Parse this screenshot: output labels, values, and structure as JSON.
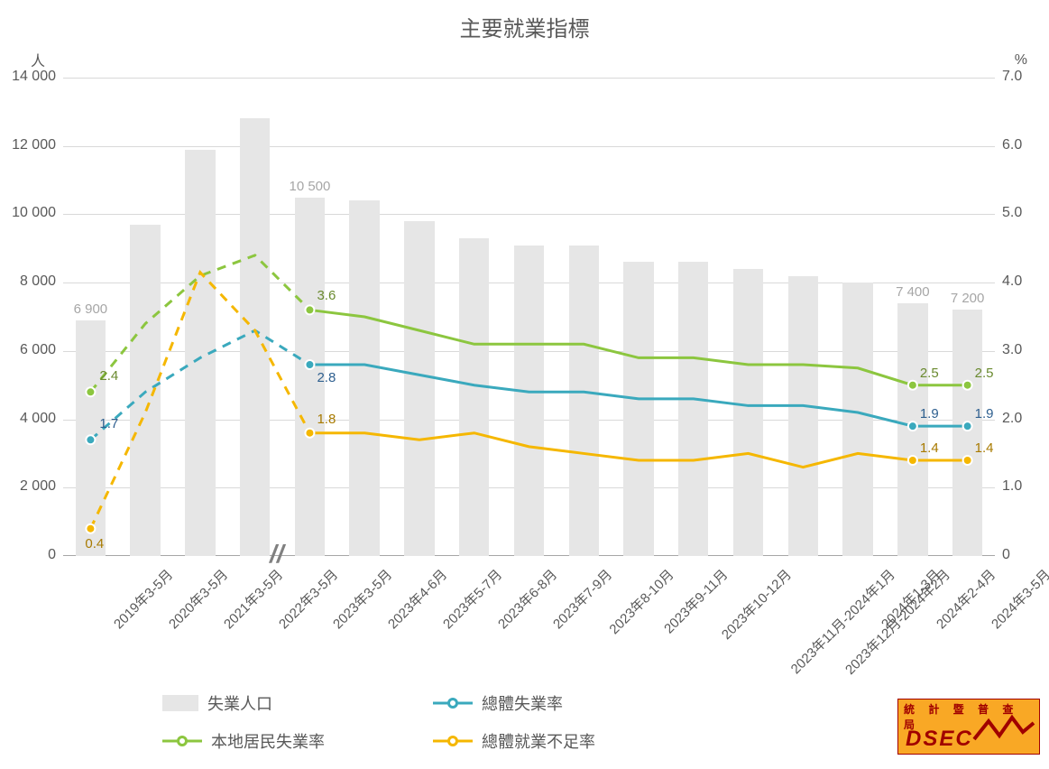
{
  "chart": {
    "title": "主要就業指標",
    "axis_label_left": "人",
    "axis_label_right": "%",
    "title_fontsize": 24,
    "label_fontsize": 16,
    "tick_fontsize": 16,
    "background_color": "#ffffff",
    "grid_color": "#d9d9d9",
    "baseline_color": "#a6a6a6",
    "y_left": {
      "min": 0,
      "max": 14000,
      "ticks": [
        0,
        2000,
        4000,
        6000,
        8000,
        10000,
        12000,
        14000
      ],
      "tick_labels": [
        "0",
        "2 000",
        "4 000",
        "6 000",
        "8 000",
        "10 000",
        "12 000",
        "14 000"
      ]
    },
    "y_right": {
      "min": 0,
      "max": 7.0,
      "ticks": [
        0,
        1.0,
        2.0,
        3.0,
        4.0,
        5.0,
        6.0,
        7.0
      ],
      "tick_labels": [
        "0",
        "1.0",
        "2.0",
        "3.0",
        "4.0",
        "5.0",
        "6.0",
        "7.0"
      ]
    },
    "categories": [
      "2019年3-5月",
      "2020年3-5月",
      "2021年3-5月",
      "2022年3-5月",
      "2023年3-5月",
      "2023年4-6月",
      "2023年5-7月",
      "2023年6-8月",
      "2023年7-9月",
      "2023年8-10月",
      "2023年9-11月",
      "2023年10-12月",
      "2023年11月-2024年1月",
      "2023年12月-2024年2月",
      "2024年1-3月",
      "2024年2-4月",
      "2024年3-5月"
    ],
    "break_after_index": 3,
    "break_mark": "//",
    "bars": {
      "name": "失業人口",
      "color": "#e6e6e6",
      "label_color": "#a6a6a6",
      "bar_width": 0.55,
      "values": [
        6900,
        9700,
        11900,
        12800,
        10500,
        10400,
        9800,
        9300,
        9100,
        9100,
        8600,
        8600,
        8400,
        8200,
        8000,
        7400,
        7200
      ],
      "shown_labels": {
        "0": "6 900",
        "4": "10 500",
        "15": "7 400",
        "16": "7 200"
      }
    },
    "lines": [
      {
        "name": "總體失業率",
        "color": "#3aa9bd",
        "marker": "circle",
        "line_width": 3,
        "marker_size": 10,
        "values": [
          1.7,
          2.4,
          2.9,
          3.3,
          2.8,
          2.8,
          2.65,
          2.5,
          2.4,
          2.4,
          2.3,
          2.3,
          2.2,
          2.2,
          2.1,
          1.9,
          1.9
        ],
        "shown_labels": {
          "0": "1.7",
          "4": "2.8",
          "15": "1.9",
          "16": "1.9"
        },
        "label_color": "#2e5f8f",
        "marker_indices": [
          0,
          4,
          15,
          16
        ],
        "dash_before_break": true
      },
      {
        "name": "本地居民失業率",
        "color": "#8cc63f",
        "marker": "circle",
        "line_width": 3,
        "marker_size": 10,
        "values": [
          2.4,
          3.4,
          4.1,
          4.4,
          3.6,
          3.5,
          3.3,
          3.1,
          3.1,
          3.1,
          2.9,
          2.9,
          2.8,
          2.8,
          2.75,
          2.5,
          2.5
        ],
        "shown_labels": {
          "0": "2.4",
          "4": "3.6",
          "15": "2.5",
          "16": "2.5"
        },
        "label_color": "#6a8a2f",
        "marker_indices": [
          0,
          4,
          15,
          16
        ],
        "dash_before_break": true
      },
      {
        "name": "總體就業不足率",
        "color": "#f5b700",
        "marker": "circle",
        "line_width": 3,
        "marker_size": 10,
        "values": [
          0.4,
          2.1,
          4.15,
          3.3,
          1.8,
          1.8,
          1.7,
          1.8,
          1.6,
          1.5,
          1.4,
          1.4,
          1.5,
          1.3,
          1.5,
          1.4,
          1.4
        ],
        "shown_labels": {
          "0": "0.4",
          "4": "1.8",
          "15": "1.4",
          "16": "1.4"
        },
        "label_color": "#a87a00",
        "marker_indices": [
          0,
          4,
          15,
          16
        ],
        "dash_before_break": true
      }
    ],
    "legend": {
      "items": [
        {
          "type": "bar",
          "label": "失業人口",
          "color": "#e6e6e6"
        },
        {
          "type": "line",
          "label": "總體失業率",
          "color": "#3aa9bd"
        },
        {
          "type": "line",
          "label": "本地居民失業率",
          "color": "#8cc63f"
        },
        {
          "type": "line",
          "label": "總體就業不足率",
          "color": "#f5b700"
        }
      ]
    }
  },
  "logo": {
    "top_text": "統 計 暨 普 查 局",
    "main_text": "DSEC",
    "bg_color": "#f9a825",
    "fg_color": "#a00000"
  }
}
